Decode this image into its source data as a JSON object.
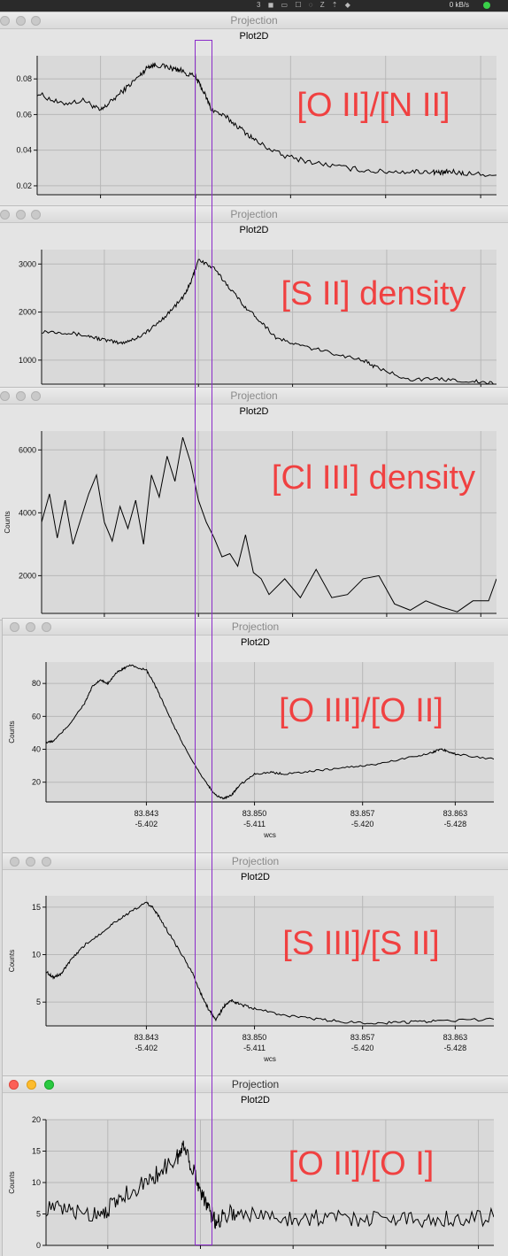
{
  "menubar": {
    "netspeed": "0 kB/s",
    "icons": "3 ◼ ▭ ☐ ◌ Z ⇡ ◆"
  },
  "windows": [
    {
      "title": "Projection",
      "plot_title": "Plot2D",
      "label": "[O II]/[N II]",
      "active": false,
      "chart_data": {
        "type": "line",
        "ylabel": "",
        "ylim": [
          0.015,
          0.093
        ],
        "yticks": [
          "0.02",
          "0.04",
          "0.06",
          "0.08"
        ],
        "ytick_values": [
          0.02,
          0.04,
          0.06,
          0.08
        ],
        "xlim": [
          83.8365,
          83.8655
        ],
        "xticks": [],
        "wcs_ticks": [],
        "xlabel": "",
        "noise": 0.0015,
        "series": [
          {
            "x": [
              83.8365,
              83.838,
              83.8395,
              83.8405,
              83.841,
              83.842,
              83.843,
              83.8435,
              83.844,
              83.845,
              83.8455,
              83.8465,
              83.847,
              83.8475,
              83.8485,
              83.8495,
              83.8505,
              83.852,
              83.854,
              83.856,
              83.858,
              83.86,
              83.8615,
              83.862,
              83.8625,
              83.8635,
              83.8655
            ],
            "y": [
              0.072,
              0.066,
              0.068,
              0.062,
              0.066,
              0.074,
              0.082,
              0.087,
              0.088,
              0.086,
              0.085,
              0.081,
              0.073,
              0.063,
              0.058,
              0.051,
              0.044,
              0.037,
              0.033,
              0.03,
              0.028,
              0.028,
              0.028,
              0.027,
              0.028,
              0.027,
              0.026
            ]
          }
        ]
      }
    },
    {
      "title": "Projection",
      "plot_title": "Plot2D",
      "label": "[S II] density",
      "active": false,
      "chart_data": {
        "type": "line",
        "ylabel": "",
        "ylim": [
          500,
          3300
        ],
        "yticks": [
          "1000",
          "2000",
          "3000"
        ],
        "ytick_values": [
          1000,
          2000,
          3000
        ],
        "xlim": [
          83.8365,
          83.8655
        ],
        "xticks": [],
        "wcs_ticks": [],
        "xlabel": "",
        "noise": 40,
        "series": [
          {
            "x": [
              83.8365,
              83.838,
              83.8395,
              83.8405,
              83.8415,
              83.8425,
              83.8435,
              83.8445,
              83.8455,
              83.846,
              83.8465,
              83.8475,
              83.8485,
              83.8495,
              83.8505,
              83.8515,
              83.853,
              83.855,
              83.857,
              83.858,
              83.86,
              83.862,
              83.864,
              83.8655
            ],
            "y": [
              1600,
              1580,
              1500,
              1420,
              1350,
              1450,
              1650,
              1950,
              2300,
              2600,
              3100,
              2900,
              2500,
              2100,
              1800,
              1450,
              1300,
              1150,
              1000,
              820,
              600,
              600,
              560,
              500
            ]
          }
        ]
      }
    },
    {
      "title": "Projection",
      "plot_title": "Plot2D",
      "label": "[Cl III] density",
      "active": false,
      "chart_data": {
        "type": "line",
        "ylabel": "Counts",
        "ylim": [
          800,
          6600
        ],
        "yticks": [
          "2000",
          "4000",
          "6000"
        ],
        "ytick_values": [
          2000,
          4000,
          6000
        ],
        "xlim": [
          83.8365,
          83.8655
        ],
        "xticks": [],
        "wcs_ticks": [],
        "xlabel": "",
        "noise": 0,
        "series": [
          {
            "x": [
              83.8365,
              83.837,
              83.8375,
              83.838,
              83.8385,
              83.839,
              83.8395,
              83.84,
              83.8405,
              83.841,
              83.8415,
              83.842,
              83.8425,
              83.843,
              83.8435,
              83.844,
              83.8445,
              83.845,
              83.8455,
              83.846,
              83.8465,
              83.847,
              83.8475,
              83.848,
              83.8485,
              83.849,
              83.8495,
              83.85,
              83.8505,
              83.851,
              83.852,
              83.853,
              83.854,
              83.855,
              83.856,
              83.857,
              83.858,
              83.859,
              83.86,
              83.861,
              83.862,
              83.863,
              83.864,
              83.865,
              83.8655
            ],
            "y": [
              3700,
              4600,
              3200,
              4400,
              3000,
              3800,
              4600,
              5200,
              3700,
              3100,
              4200,
              3500,
              4400,
              3000,
              5200,
              4500,
              5800,
              5000,
              6400,
              5600,
              4400,
              3700,
              3200,
              2600,
              2700,
              2300,
              3300,
              2100,
              1900,
              1400,
              1900,
              1300,
              2200,
              1300,
              1400,
              1900,
              2000,
              1100,
              900,
              1200,
              1000,
              850,
              1200,
              1200,
              1900
            ]
          }
        ]
      }
    },
    {
      "title": "Projection",
      "plot_title": "Plot2D",
      "label": "[O III]/[O II]",
      "active": false,
      "chart_data": {
        "type": "line",
        "ylabel": "Counts",
        "ylim": [
          8,
          93
        ],
        "yticks": [
          "20",
          "40",
          "60",
          "80"
        ],
        "ytick_values": [
          20,
          40,
          60,
          80
        ],
        "xlim": [
          83.8365,
          83.8655
        ],
        "xticks": [
          "83.843",
          "83.850",
          "83.857",
          "83.863"
        ],
        "xtick_values": [
          83.843,
          83.85,
          83.857,
          83.863
        ],
        "wcs_ticks": [
          "-5.402",
          "-5.411",
          "-5.420",
          "-5.428"
        ],
        "xlabel": "wcs",
        "noise": 0.6,
        "series": [
          {
            "x": [
              83.8365,
              83.837,
              83.838,
              83.839,
              83.8395,
              83.84,
              83.8405,
              83.841,
              83.8415,
              83.842,
              83.843,
              83.8435,
              83.844,
              83.845,
              83.846,
              83.847,
              83.8475,
              83.848,
              83.8485,
              83.849,
              83.85,
              83.851,
              83.852,
              83.854,
              83.856,
              83.858,
              83.86,
              83.8615,
              83.862,
              83.8625,
              83.863,
              83.8655
            ],
            "y": [
              44,
              45,
              55,
              68,
              78,
              82,
              80,
              86,
              89,
              91,
              88,
              80,
              70,
              50,
              32,
              18,
              12,
              10,
              12,
              18,
              25,
              26,
              25,
              27,
              29,
              31,
              35,
              38,
              40,
              39,
              37,
              34
            ]
          }
        ]
      }
    },
    {
      "title": "Projection",
      "plot_title": "Plot2D",
      "label": "[S III]/[S II]",
      "active": false,
      "chart_data": {
        "type": "line",
        "ylabel": "Counts",
        "ylim": [
          2.5,
          16.2
        ],
        "yticks": [
          "5",
          "10",
          "15"
        ],
        "ytick_values": [
          5,
          10,
          15
        ],
        "xlim": [
          83.8365,
          83.8655
        ],
        "xticks": [
          "83.843",
          "83.850",
          "83.857",
          "83.863"
        ],
        "xtick_values": [
          83.843,
          83.85,
          83.857,
          83.863
        ],
        "wcs_ticks": [
          "-5.402",
          "-5.411",
          "-5.420",
          "-5.428"
        ],
        "xlabel": "wcs",
        "noise": 0.15,
        "series": [
          {
            "x": [
              83.8365,
              83.837,
              83.8375,
              83.838,
              83.839,
              83.84,
              83.841,
              83.842,
              83.843,
              83.8435,
              83.844,
              83.845,
              83.846,
              83.8465,
              83.847,
              83.8475,
              83.848,
              83.8485,
              83.849,
              83.85,
              83.852,
              83.854,
              83.856,
              83.858,
              83.86,
              83.862,
              83.8655
            ],
            "y": [
              8.2,
              7.6,
              8.0,
              9.2,
              11.0,
              12.2,
              13.5,
              14.5,
              15.5,
              14.8,
              13.5,
              10.8,
              8.0,
              6.0,
              4.3,
              3.1,
              4.5,
              5.2,
              4.8,
              4.3,
              3.6,
              3.2,
              2.9,
              2.8,
              2.9,
              3.0,
              3.2
            ]
          }
        ]
      }
    },
    {
      "title": "Projection",
      "plot_title": "Plot2D",
      "label": "[O II]/[O I]",
      "active": true,
      "chart_data": {
        "type": "line",
        "ylabel": "Counts",
        "ylim": [
          0,
          20
        ],
        "yticks": [
          "0",
          "5",
          "10",
          "15",
          "20"
        ],
        "ytick_values": [
          0,
          5,
          10,
          15,
          20
        ],
        "xlim": [
          83.8365,
          83.8655
        ],
        "xticks": [],
        "wcs_ticks": [],
        "xlabel": "",
        "noise": 1.4,
        "series": [
          {
            "x": [
              83.8365,
              83.838,
              83.8395,
              83.8405,
              83.8415,
              83.843,
              83.844,
              83.845,
              83.8455,
              83.846,
              83.8465,
              83.847,
              83.8475,
              83.848,
              83.849,
              83.851,
              83.853,
              83.855,
              83.857,
              83.859,
              83.861,
              83.863,
              83.8655
            ],
            "y": [
              6,
              5.5,
              5,
              5.8,
              8,
              10,
              12,
              14,
              16,
              12,
              9,
              6,
              3.5,
              5,
              5.2,
              4.5,
              4.4,
              4.5,
              4.3,
              4.4,
              4.2,
              4.3,
              4.5
            ]
          }
        ]
      }
    }
  ]
}
